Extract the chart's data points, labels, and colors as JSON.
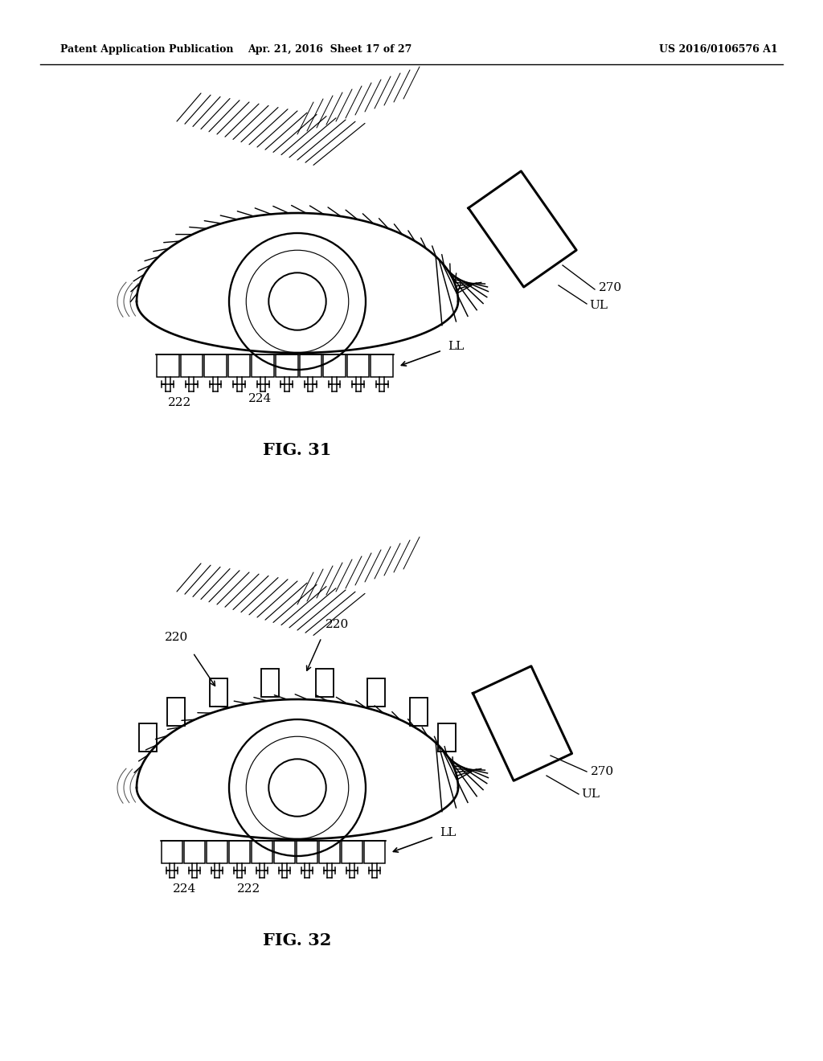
{
  "header_left": "Patent Application Publication",
  "header_mid": "Apr. 21, 2016  Sheet 17 of 27",
  "header_right": "US 2016/0106576 A1",
  "fig31_label": "FIG. 31",
  "fig32_label": "FIG. 32",
  "background": "#ffffff",
  "line_color": "#000000"
}
